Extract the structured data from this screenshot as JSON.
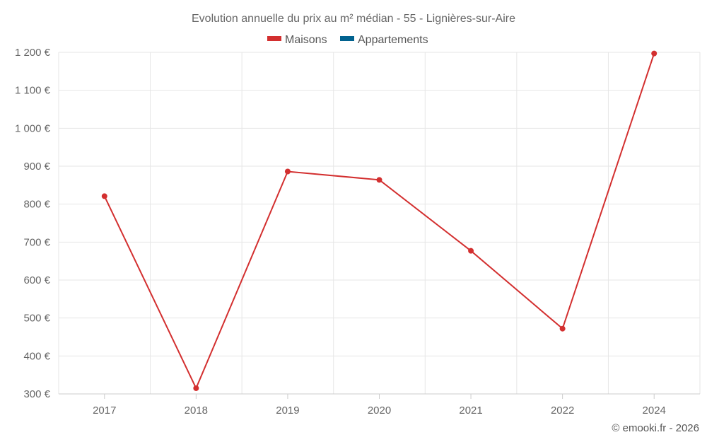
{
  "chart_data": {
    "type": "line",
    "title": "Evolution annuelle du prix au m² médian - 55 - Lignières-sur-Aire",
    "categories": [
      "2017",
      "2018",
      "2019",
      "2020",
      "2021",
      "2022",
      "2024"
    ],
    "series": [
      {
        "name": "Maisons",
        "color": "#d32f2f",
        "values": [
          821,
          315,
          886,
          864,
          677,
          472,
          1197
        ]
      },
      {
        "name": "Appartements",
        "color": "#01628f",
        "values": [
          null,
          null,
          null,
          null,
          null,
          null,
          null
        ]
      }
    ],
    "y_ticks": [
      300,
      400,
      500,
      600,
      700,
      800,
      900,
      1000,
      1100,
      1200
    ],
    "y_tick_labels": [
      "300 €",
      "400 €",
      "500 €",
      "600 €",
      "700 €",
      "800 €",
      "900 €",
      "1 000 €",
      "1 100 €",
      "1 200 €"
    ],
    "ylim": [
      300,
      1200
    ],
    "grid": true,
    "legend_position": "top-center"
  },
  "credit": "© emooki.fr - 2026"
}
